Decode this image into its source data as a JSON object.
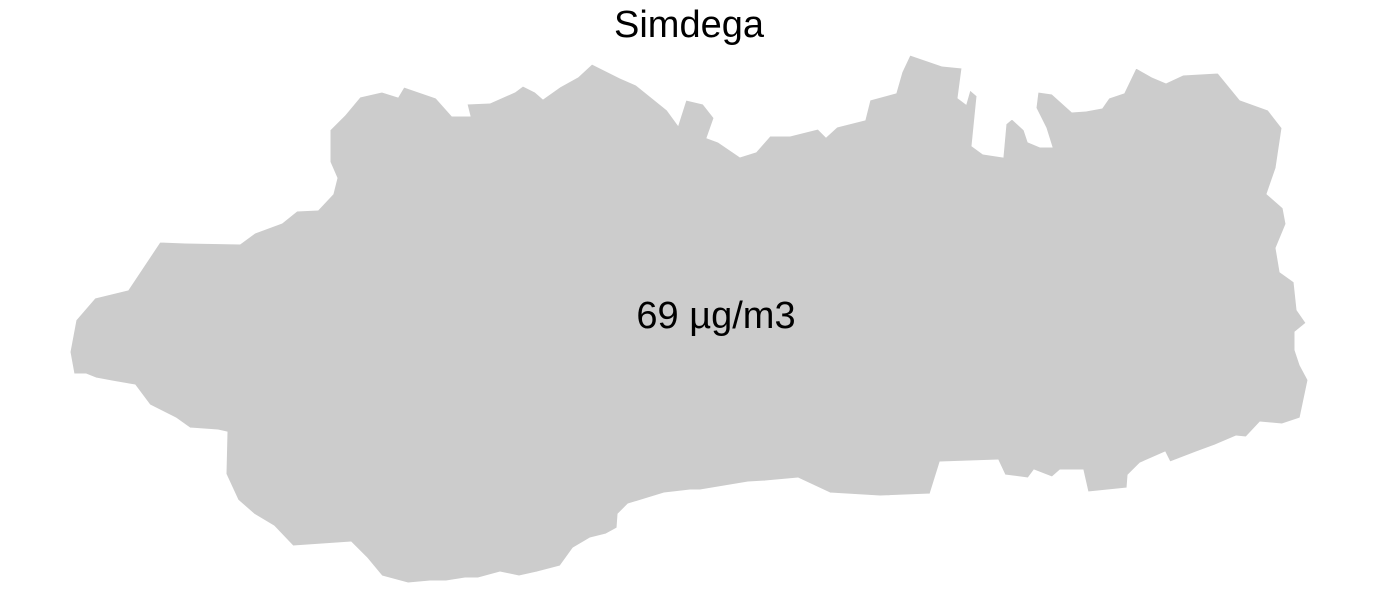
{
  "map": {
    "title": "Simdega",
    "district_name": "Simdega",
    "value_label": "69 µg/m3",
    "value": 69,
    "unit": "µg/m3",
    "fill_color": "#cccccc",
    "background_color": "#ffffff"
  }
}
